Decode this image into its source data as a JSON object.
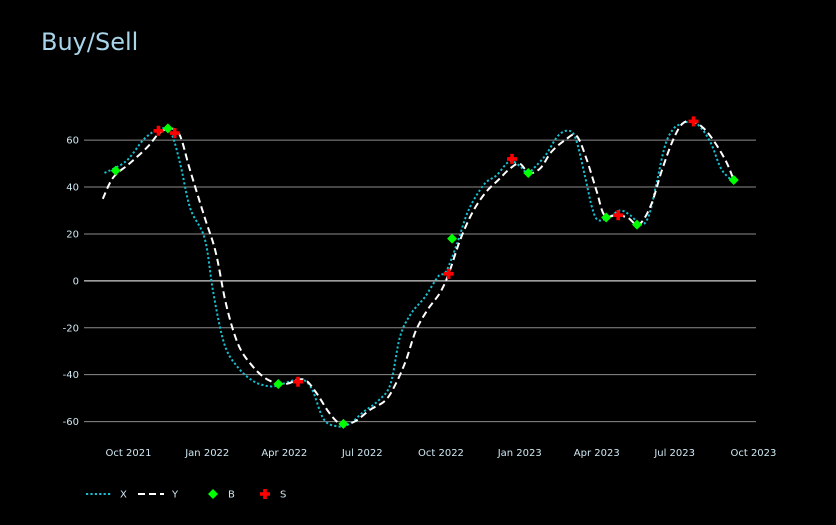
{
  "chart_data": {
    "type": "line",
    "title": "Buy/Sell",
    "xlabel": "",
    "ylabel": "",
    "x_range": [
      "2021-08-10",
      "2023-10-04"
    ],
    "ylim": [
      -67,
      72
    ],
    "y_ticks": [
      -60,
      -40,
      -20,
      0,
      20,
      40,
      60
    ],
    "x_ticks": [
      {
        "date": "2021-10-01",
        "label": "Oct 2021"
      },
      {
        "date": "2022-01-01",
        "label": "Jan 2022"
      },
      {
        "date": "2022-04-01",
        "label": "Apr 2022"
      },
      {
        "date": "2022-07-01",
        "label": "Jul 2022"
      },
      {
        "date": "2022-10-01",
        "label": "Oct 2022"
      },
      {
        "date": "2023-01-01",
        "label": "Jan 2023"
      },
      {
        "date": "2023-04-01",
        "label": "Apr 2023"
      },
      {
        "date": "2023-07-01",
        "label": "Jul 2023"
      },
      {
        "date": "2023-10-01",
        "label": "Oct 2023"
      }
    ],
    "grid": true,
    "legend": "bottom-left",
    "series": [
      {
        "name": "X",
        "style": "dotted",
        "color": "#17becf",
        "points": [
          [
            "2021-09-03",
            46
          ],
          [
            "2021-09-28",
            51
          ],
          [
            "2021-10-18",
            60
          ],
          [
            "2021-11-01",
            64
          ],
          [
            "2021-11-12",
            65
          ],
          [
            "2021-11-21",
            62
          ],
          [
            "2021-12-01",
            49
          ],
          [
            "2021-12-12",
            31
          ],
          [
            "2021-12-29",
            18
          ],
          [
            "2022-01-08",
            -5
          ],
          [
            "2022-01-21",
            -27
          ],
          [
            "2022-02-06",
            -37
          ],
          [
            "2022-02-25",
            -43
          ],
          [
            "2022-03-16",
            -45
          ],
          [
            "2022-03-29",
            -44
          ],
          [
            "2022-04-20",
            -42
          ],
          [
            "2022-05-03",
            -46
          ],
          [
            "2022-05-17",
            -59
          ],
          [
            "2022-06-02",
            -62
          ],
          [
            "2022-06-16",
            -61
          ],
          [
            "2022-07-02",
            -56
          ],
          [
            "2022-07-20",
            -51
          ],
          [
            "2022-08-03",
            -44
          ],
          [
            "2022-08-14",
            -24
          ],
          [
            "2022-08-27",
            -14
          ],
          [
            "2022-09-12",
            -7
          ],
          [
            "2022-09-28",
            2
          ],
          [
            "2022-10-07",
            4
          ],
          [
            "2022-10-20",
            16
          ],
          [
            "2022-11-02",
            30
          ],
          [
            "2022-11-20",
            41
          ],
          [
            "2022-12-05",
            45
          ],
          [
            "2022-12-20",
            51
          ],
          [
            "2023-01-01",
            49
          ],
          [
            "2023-01-10",
            46
          ],
          [
            "2023-01-20",
            49
          ],
          [
            "2023-02-01",
            54
          ],
          [
            "2023-02-15",
            62
          ],
          [
            "2023-02-28",
            64
          ],
          [
            "2023-03-08",
            60
          ],
          [
            "2023-03-18",
            45
          ],
          [
            "2023-03-26",
            32
          ],
          [
            "2023-04-02",
            26
          ],
          [
            "2023-04-15",
            27
          ],
          [
            "2023-04-28",
            30
          ],
          [
            "2023-05-10",
            28
          ],
          [
            "2023-05-23",
            24
          ],
          [
            "2023-06-01",
            28
          ],
          [
            "2023-06-10",
            42
          ],
          [
            "2023-06-20",
            58
          ],
          [
            "2023-06-30",
            65
          ],
          [
            "2023-07-10",
            67
          ],
          [
            "2023-07-20",
            68
          ],
          [
            "2023-07-30",
            66
          ],
          [
            "2023-08-12",
            59
          ],
          [
            "2023-08-24",
            48
          ],
          [
            "2023-09-05",
            43
          ]
        ]
      },
      {
        "name": "Y",
        "style": "dashed",
        "color": "#ffffff",
        "points": [
          [
            "2021-09-01",
            35
          ],
          [
            "2021-09-13",
            44
          ],
          [
            "2021-10-02",
            50
          ],
          [
            "2021-10-23",
            57
          ],
          [
            "2021-11-06",
            63
          ],
          [
            "2021-11-19",
            65
          ],
          [
            "2021-11-30",
            62
          ],
          [
            "2021-12-12",
            47
          ],
          [
            "2021-12-29",
            27
          ],
          [
            "2022-01-11",
            12
          ],
          [
            "2022-01-23",
            -10
          ],
          [
            "2022-02-06",
            -27
          ],
          [
            "2022-02-22",
            -36
          ],
          [
            "2022-03-12",
            -42
          ],
          [
            "2022-04-01",
            -44
          ],
          [
            "2022-04-23",
            -42
          ],
          [
            "2022-05-07",
            -47
          ],
          [
            "2022-05-23",
            -56
          ],
          [
            "2022-06-06",
            -61
          ],
          [
            "2022-06-22",
            -60
          ],
          [
            "2022-07-10",
            -55
          ],
          [
            "2022-07-28",
            -51
          ],
          [
            "2022-08-09",
            -44
          ],
          [
            "2022-08-21",
            -34
          ],
          [
            "2022-09-02",
            -21
          ],
          [
            "2022-09-16",
            -12
          ],
          [
            "2022-09-30",
            -5
          ],
          [
            "2022-10-10",
            3
          ],
          [
            "2022-10-24",
            18
          ],
          [
            "2022-11-08",
            30
          ],
          [
            "2022-11-23",
            38
          ],
          [
            "2022-12-07",
            43
          ],
          [
            "2022-12-21",
            48
          ],
          [
            "2023-01-01",
            50
          ],
          [
            "2023-01-12",
            46
          ],
          [
            "2023-01-25",
            48
          ],
          [
            "2023-02-07",
            55
          ],
          [
            "2023-02-23",
            60
          ],
          [
            "2023-03-08",
            62
          ],
          [
            "2023-03-20",
            52
          ],
          [
            "2023-04-01",
            38
          ],
          [
            "2023-04-10",
            28
          ],
          [
            "2023-04-24",
            28
          ],
          [
            "2023-05-07",
            27
          ],
          [
            "2023-05-20",
            24
          ],
          [
            "2023-06-03",
            32
          ],
          [
            "2023-06-16",
            47
          ],
          [
            "2023-06-29",
            60
          ],
          [
            "2023-07-10",
            67
          ],
          [
            "2023-07-22",
            68
          ],
          [
            "2023-08-04",
            65
          ],
          [
            "2023-08-17",
            59
          ],
          [
            "2023-08-30",
            51
          ],
          [
            "2023-09-07",
            44
          ]
        ]
      },
      {
        "name": "B",
        "style": "marker",
        "marker": "diamond",
        "color": "#00ff00",
        "points": [
          [
            "2021-09-16",
            47
          ],
          [
            "2021-11-16",
            65
          ],
          [
            "2022-03-25",
            -44
          ],
          [
            "2022-06-09",
            -61
          ],
          [
            "2022-10-14",
            18
          ],
          [
            "2023-01-11",
            46
          ],
          [
            "2023-04-12",
            27
          ],
          [
            "2023-05-18",
            24
          ],
          [
            "2023-09-08",
            43
          ]
        ]
      },
      {
        "name": "S",
        "style": "marker",
        "marker": "cross",
        "color": "#ff0000",
        "points": [
          [
            "2021-11-05",
            64
          ],
          [
            "2021-11-24",
            63
          ],
          [
            "2022-04-17",
            -43
          ],
          [
            "2022-10-10",
            3
          ],
          [
            "2022-12-23",
            52
          ],
          [
            "2023-04-26",
            28
          ],
          [
            "2023-07-23",
            68
          ]
        ]
      }
    ]
  }
}
